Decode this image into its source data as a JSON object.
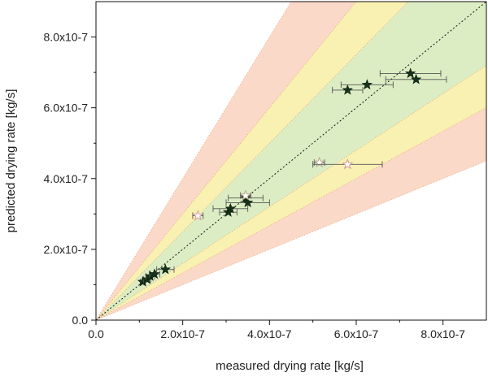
{
  "chart_data": {
    "type": "scatter",
    "xlabel": "measured drying rate [kg/s]",
    "ylabel": "predicted drying rate [kg/s]",
    "xlim": [
      0,
      9e-07
    ],
    "ylim": [
      0,
      9e-07
    ],
    "x_ticks": [
      0,
      2e-07,
      4e-07,
      6e-07,
      8e-07
    ],
    "x_tick_labels": [
      "0.0",
      "2.0x10-7",
      "4.0x10-7",
      "6.0x10-7",
      "8.0x10-7"
    ],
    "y_ticks": [
      0,
      2e-07,
      4e-07,
      6e-07,
      8e-07
    ],
    "y_tick_labels": [
      "0.0",
      "2.0x10-7",
      "4.0x10-7",
      "6.0x10-7",
      "8.0x10-7"
    ],
    "grid": false,
    "reference_line": "y = x (dotted)",
    "error_bands": [
      {
        "slope_low": 0.5,
        "slope_high": 2.0,
        "color": "#fbd9c8"
      },
      {
        "slope_low": 0.667,
        "slope_high": 1.5,
        "color": "#f8f1b2"
      },
      {
        "slope_low": 0.8,
        "slope_high": 1.25,
        "color": "#dcedc4"
      }
    ],
    "colors": {
      "filled_star": "#16331a",
      "open_star_light": "#b8a58a",
      "open_star_pink": "#d49a9a",
      "error_bar": "#555555",
      "band_edge": "#e6a27a"
    },
    "series": [
      {
        "marker": "filled-star",
        "points": [
          {
            "x": 1.08e-07,
            "y": 1.08e-07,
            "xerr": 6e-09
          },
          {
            "x": 1.18e-07,
            "y": 1.15e-07,
            "xerr": 8e-09
          },
          {
            "x": 1.25e-07,
            "y": 1.24e-07,
            "xerr": 1e-08
          },
          {
            "x": 1.35e-07,
            "y": 1.3e-07,
            "xerr": 1.2e-08
          },
          {
            "x": 1.6e-07,
            "y": 1.43e-07,
            "xerr": 2e-08
          },
          {
            "x": 3.05e-07,
            "y": 3.05e-07,
            "xerr": 2e-08
          },
          {
            "x": 3.1e-07,
            "y": 3.15e-07,
            "xerr": 4e-08
          },
          {
            "x": 3.45e-07,
            "y": 3.45e-07,
            "xerr": 4e-08
          },
          {
            "x": 3.5e-07,
            "y": 3.32e-07,
            "xerr": 5e-08
          },
          {
            "x": 5.8e-07,
            "y": 6.5e-07,
            "xerr": 3.5e-08
          },
          {
            "x": 6.25e-07,
            "y": 6.65e-07,
            "xerr": 6e-08
          },
          {
            "x": 7.25e-07,
            "y": 6.97e-07,
            "xerr": 7e-08
          },
          {
            "x": 7.38e-07,
            "y": 6.8e-07,
            "xerr": 7e-08
          }
        ]
      },
      {
        "marker": "open-star",
        "points": [
          {
            "x": 2.35e-07,
            "y": 2.95e-07,
            "xerr": 1.2e-08,
            "color": "open_star_pink"
          },
          {
            "x": 3.45e-07,
            "y": 3.52e-07,
            "xerr": 1.2e-08,
            "color": "open_star_light"
          },
          {
            "x": 5.15e-07,
            "y": 4.45e-07,
            "xerr": 1.2e-08,
            "color": "open_star_light"
          },
          {
            "x": 5.8e-07,
            "y": 4.4e-07,
            "xerr": 8e-08,
            "color": "open_star_pink"
          }
        ]
      }
    ]
  }
}
